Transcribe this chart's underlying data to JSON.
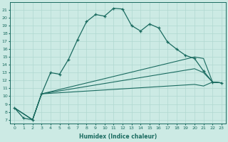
{
  "xlabel": "Humidex (Indice chaleur)",
  "ylabel": "",
  "bg_color": "#cceae4",
  "line_color": "#1a6b60",
  "grid_color": "#b0d8d0",
  "xlim": [
    -0.5,
    23.5
  ],
  "ylim": [
    6.5,
    22
  ],
  "yticks": [
    7,
    8,
    9,
    10,
    11,
    12,
    13,
    14,
    15,
    16,
    17,
    18,
    19,
    20,
    21
  ],
  "xticks": [
    0,
    1,
    2,
    3,
    4,
    5,
    6,
    7,
    8,
    9,
    10,
    11,
    12,
    13,
    14,
    15,
    16,
    17,
    18,
    19,
    20,
    21,
    22,
    23
  ],
  "series1_x": [
    0,
    1,
    2,
    3,
    4,
    5,
    6,
    7,
    8,
    9,
    10,
    11,
    12,
    13,
    14,
    15,
    16,
    17,
    18,
    19,
    20,
    21,
    22,
    23
  ],
  "series1_y": [
    8.5,
    7.2,
    7.0,
    10.3,
    13.0,
    12.8,
    14.7,
    17.2,
    19.5,
    20.4,
    20.2,
    21.2,
    21.1,
    19.0,
    18.3,
    19.2,
    18.7,
    16.9,
    16.0,
    15.2,
    14.8,
    13.2,
    11.8,
    11.7
  ],
  "series2_x": [
    0,
    2,
    3,
    20,
    21,
    22,
    23
  ],
  "series2_y": [
    8.5,
    7.0,
    10.3,
    15.0,
    14.8,
    11.8,
    11.7
  ],
  "series3_x": [
    0,
    2,
    3,
    20,
    21,
    22,
    23
  ],
  "series3_y": [
    8.5,
    7.0,
    10.3,
    13.5,
    13.0,
    11.8,
    11.7
  ],
  "series4_x": [
    0,
    2,
    3,
    20,
    21,
    22,
    23
  ],
  "series4_y": [
    8.5,
    7.0,
    10.3,
    11.5,
    11.3,
    11.8,
    11.7
  ]
}
